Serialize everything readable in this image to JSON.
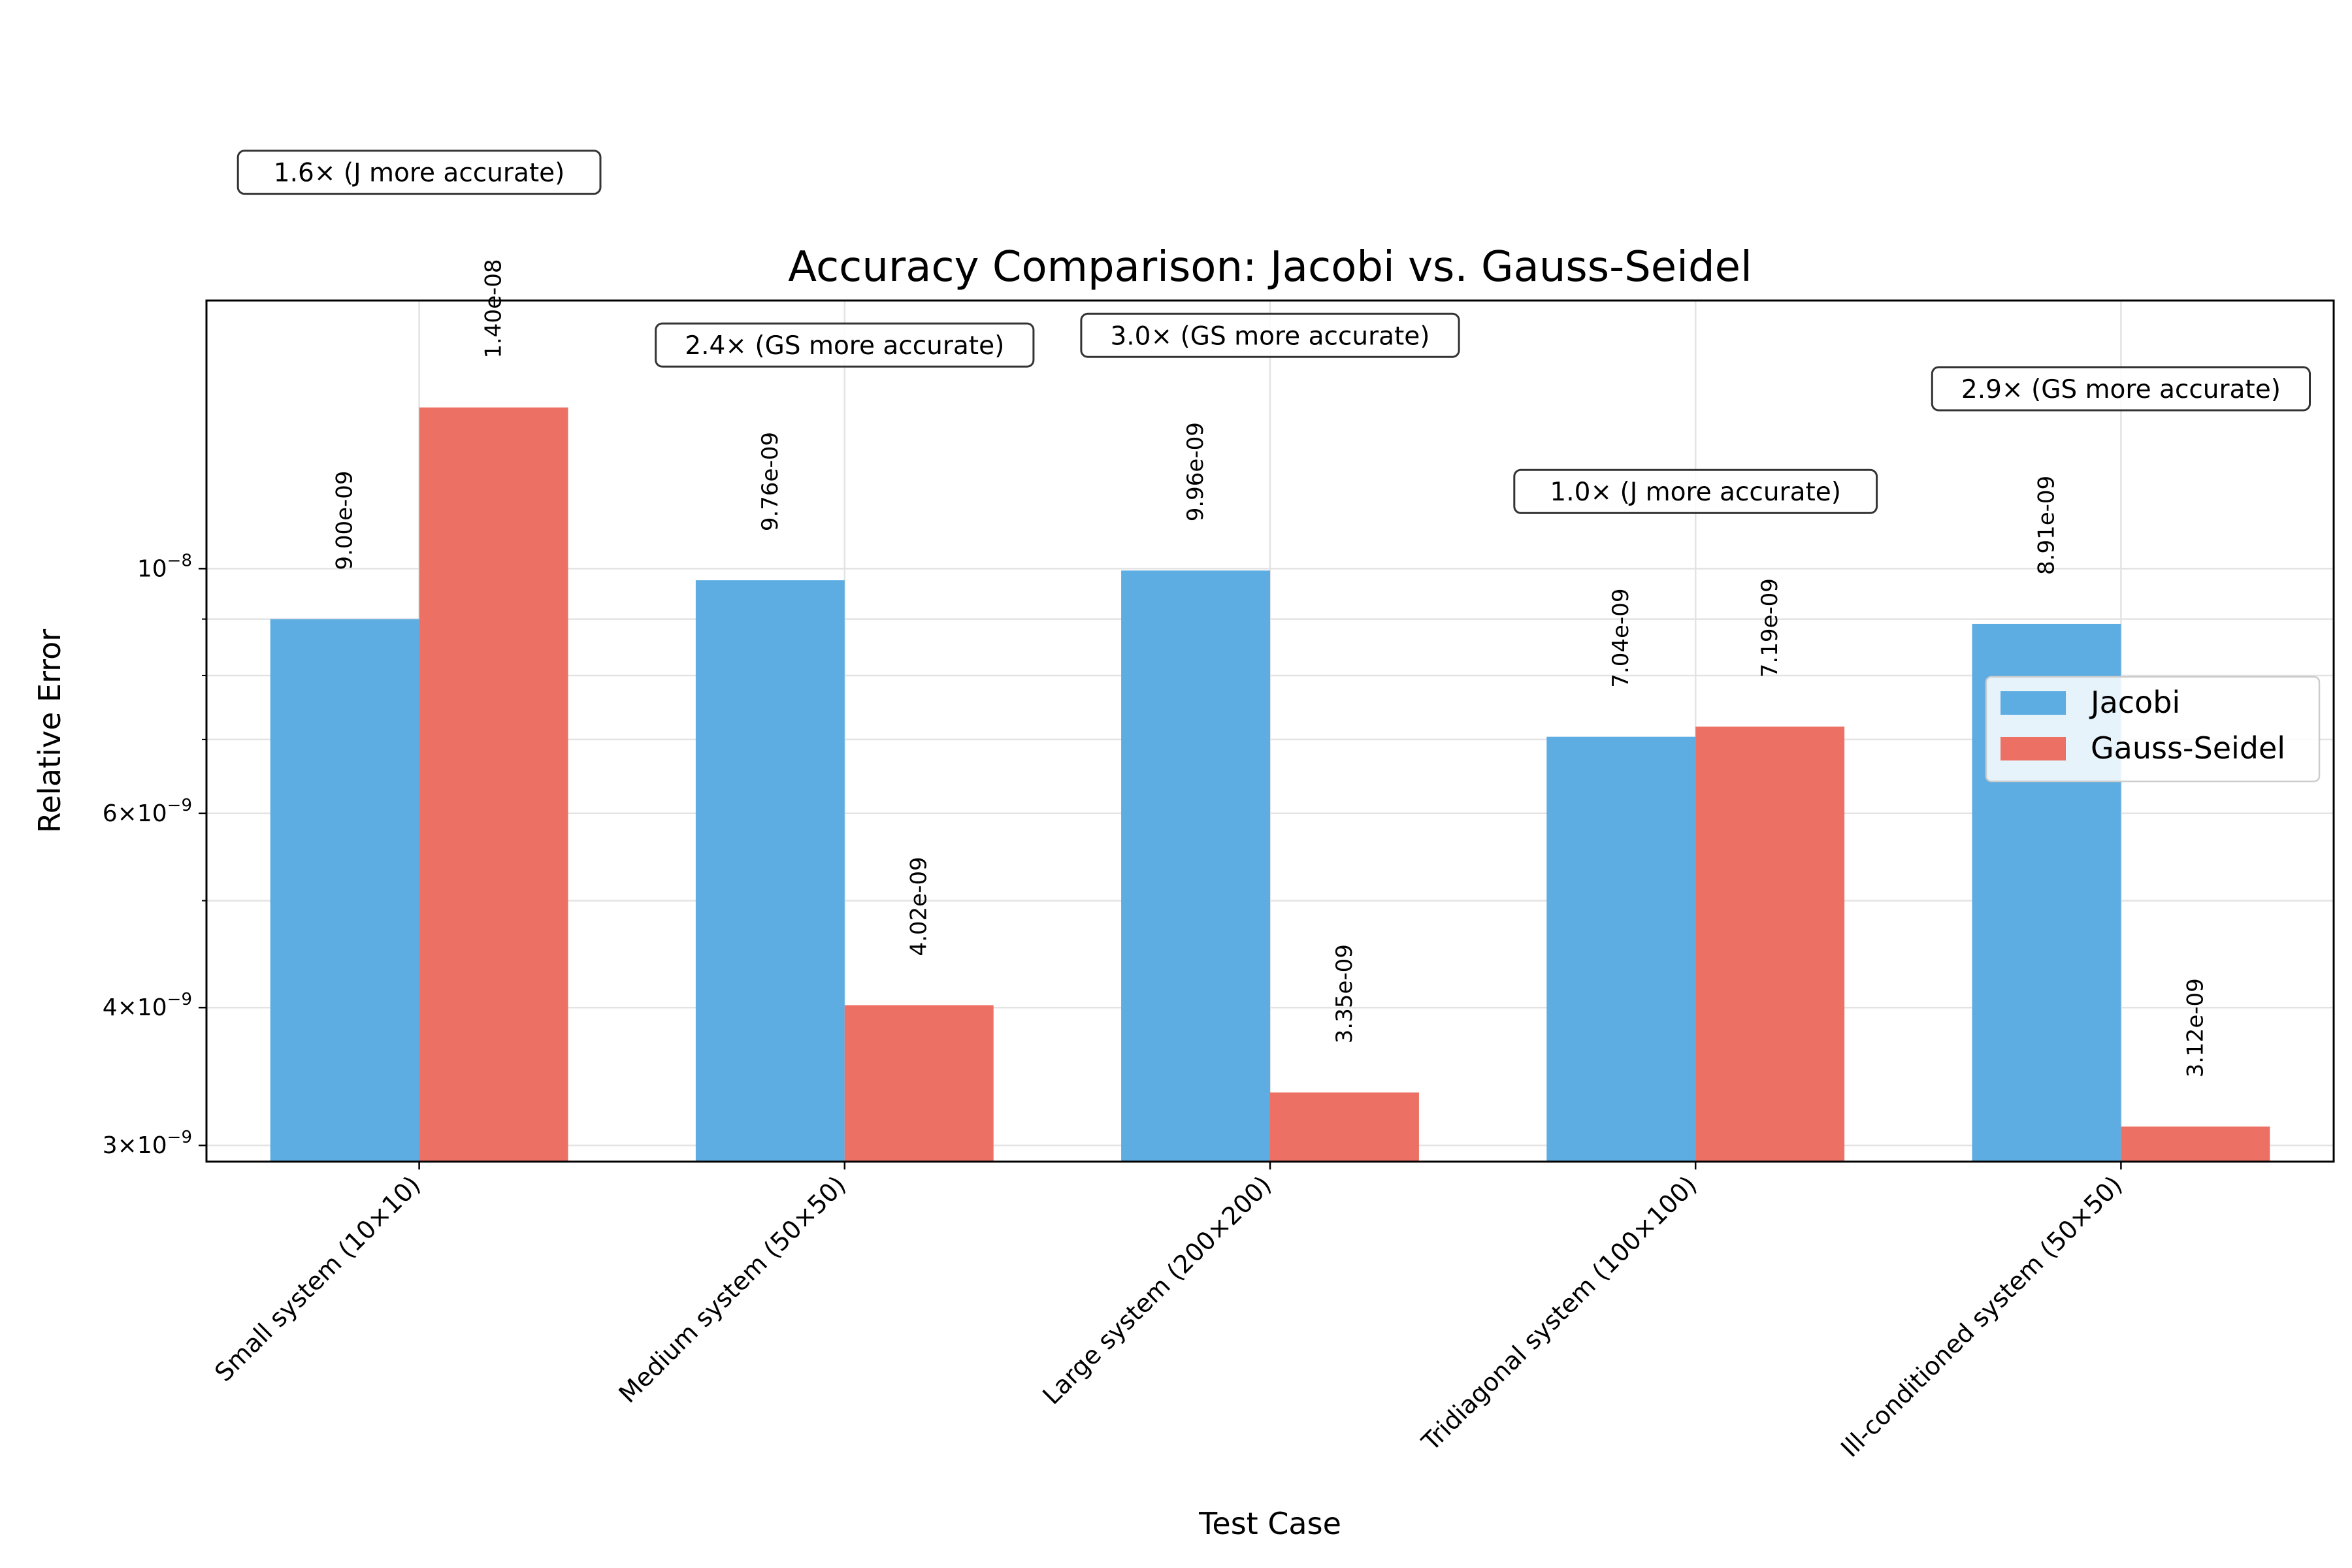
{
  "chart_data": {
    "type": "bar",
    "title": "Accuracy Comparison: Jacobi vs. Gauss-Seidel",
    "xlabel": "Test Case",
    "ylabel": "Relative Error",
    "yscale": "log",
    "ylim": [
      2.9e-09,
      1.75e-08
    ],
    "grid": true,
    "legend_position": "center-right",
    "categories": [
      "Small system (10×10)",
      "Medium system (50×50)",
      "Large system (200×200)",
      "Tridiagonal system (100×100)",
      "Ill-conditioned system (50×50)"
    ],
    "series": [
      {
        "name": "Jacobi",
        "color": "#5dade2",
        "values": [
          9e-09,
          9.76e-09,
          9.96e-09,
          7.04e-09,
          8.91e-09
        ],
        "labels": [
          "9.00e-09",
          "9.76e-09",
          "9.96e-09",
          "7.04e-09",
          "8.91e-09"
        ]
      },
      {
        "name": "Gauss-Seidel",
        "color": "#ec7063",
        "values": [
          1.4e-08,
          4.02e-09,
          3.35e-09,
          7.19e-09,
          3.12e-09
        ],
        "labels": [
          "1.40e-08",
          "4.02e-09",
          "3.35e-09",
          "7.19e-09",
          "3.12e-09"
        ]
      }
    ],
    "ratio_annotations": [
      "1.6× (J more accurate)",
      "2.4× (GS more accurate)",
      "3.0× (GS more accurate)",
      "1.0× (J more accurate)",
      "2.9× (GS more accurate)"
    ],
    "y_ticks": [
      {
        "value": 3e-09,
        "base": "3",
        "exp": "−9"
      },
      {
        "value": 4e-09,
        "base": "4",
        "exp": "−9"
      },
      {
        "value": 6e-09,
        "base": "6",
        "exp": "−9"
      },
      {
        "value": 1e-08,
        "base": "",
        "exp": "−8"
      }
    ],
    "y_minor_ticks": [
      5e-09,
      7e-09,
      8e-09,
      9e-09
    ],
    "tick_base_label": "10"
  }
}
